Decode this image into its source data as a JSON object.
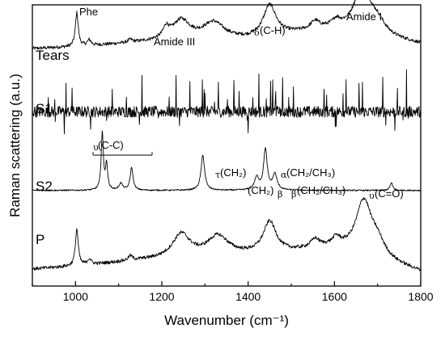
{
  "chart_data": {
    "type": "line",
    "xlabel": "Wavenumber (cm⁻¹)",
    "ylabel": "Raman scattering (a.u.)",
    "xlim": [
      900,
      1800
    ],
    "xticks": [
      "1000",
      "1200",
      "1400",
      "1600",
      "1800"
    ],
    "ylim": [
      0,
      5
    ],
    "grid": false,
    "series": [
      {
        "name": "Tears",
        "offset": 4.2,
        "noise": 0.03,
        "spikes": 0,
        "baseline": [
          [
            900,
            0.02
          ],
          [
            1000,
            0.05
          ],
          [
            1200,
            0.15
          ],
          [
            1400,
            0.18
          ],
          [
            1500,
            0.28
          ],
          [
            1600,
            0.38
          ],
          [
            1800,
            0.1
          ]
        ],
        "peaks": [
          [
            1003,
            0.6,
            4
          ],
          [
            1032,
            0.1,
            5
          ],
          [
            1127,
            0.05,
            6
          ],
          [
            1210,
            0.18,
            8
          ],
          [
            1245,
            0.35,
            25
          ],
          [
            1320,
            0.3,
            30
          ],
          [
            1450,
            0.55,
            18
          ],
          [
            1555,
            0.14,
            12
          ],
          [
            1605,
            0.1,
            10
          ],
          [
            1665,
            0.85,
            22
          ],
          [
            1700,
            0.2,
            20
          ]
        ]
      },
      {
        "name": "S1",
        "offset": 3.0,
        "noise": 0.1,
        "spikes": 55,
        "baseline": [
          [
            900,
            0.1
          ],
          [
            1800,
            0.1
          ]
        ],
        "peaks": []
      },
      {
        "name": "S2",
        "offset": 1.65,
        "noise": 0.012,
        "spikes": 0,
        "baseline": [
          [
            900,
            0.05
          ],
          [
            1800,
            0.05
          ]
        ],
        "peaks": [
          [
            1062,
            1.02,
            3
          ],
          [
            1072,
            0.45,
            3
          ],
          [
            1105,
            0.12,
            5
          ],
          [
            1130,
            0.4,
            4
          ],
          [
            1295,
            0.62,
            5
          ],
          [
            1420,
            0.22,
            6
          ],
          [
            1440,
            0.72,
            5
          ],
          [
            1462,
            0.28,
            6
          ],
          [
            1732,
            0.13,
            4
          ]
        ]
      },
      {
        "name": "P",
        "offset": 0.2,
        "noise": 0.03,
        "spikes": 0,
        "baseline": [
          [
            900,
            0.1
          ],
          [
            1000,
            0.15
          ],
          [
            1150,
            0.25
          ],
          [
            1400,
            0.35
          ],
          [
            1500,
            0.4
          ],
          [
            1600,
            0.48
          ],
          [
            1800,
            0.05
          ]
        ],
        "peaks": [
          [
            1003,
            0.65,
            4
          ],
          [
            1032,
            0.1,
            5
          ],
          [
            1127,
            0.08,
            6
          ],
          [
            1245,
            0.42,
            25
          ],
          [
            1330,
            0.35,
            30
          ],
          [
            1450,
            0.55,
            18
          ],
          [
            1555,
            0.15,
            12
          ],
          [
            1605,
            0.12,
            10
          ],
          [
            1668,
            0.95,
            22
          ],
          [
            1700,
            0.25,
            20
          ]
        ]
      }
    ],
    "annotations": {
      "phe": "Phe",
      "amide3": "Amide III",
      "delta_sym": "δ",
      "delta_ch": "(C-H)",
      "amide1": "Amide I",
      "nu_cc_sym": "υ",
      "nu_cc": "(C-C)",
      "tau_sym": "τ",
      "tau_ch2": "(CH₂)",
      "alpha_sym": "α",
      "alpha_ch": "(CH₂/CH₃)",
      "ch2_beta": "(CH₂)",
      "beta_sym": "β",
      "beta_ch": "(CH₂/CH₃)",
      "nu_co_sym": "υ",
      "nu_co": "(C=O)"
    }
  }
}
